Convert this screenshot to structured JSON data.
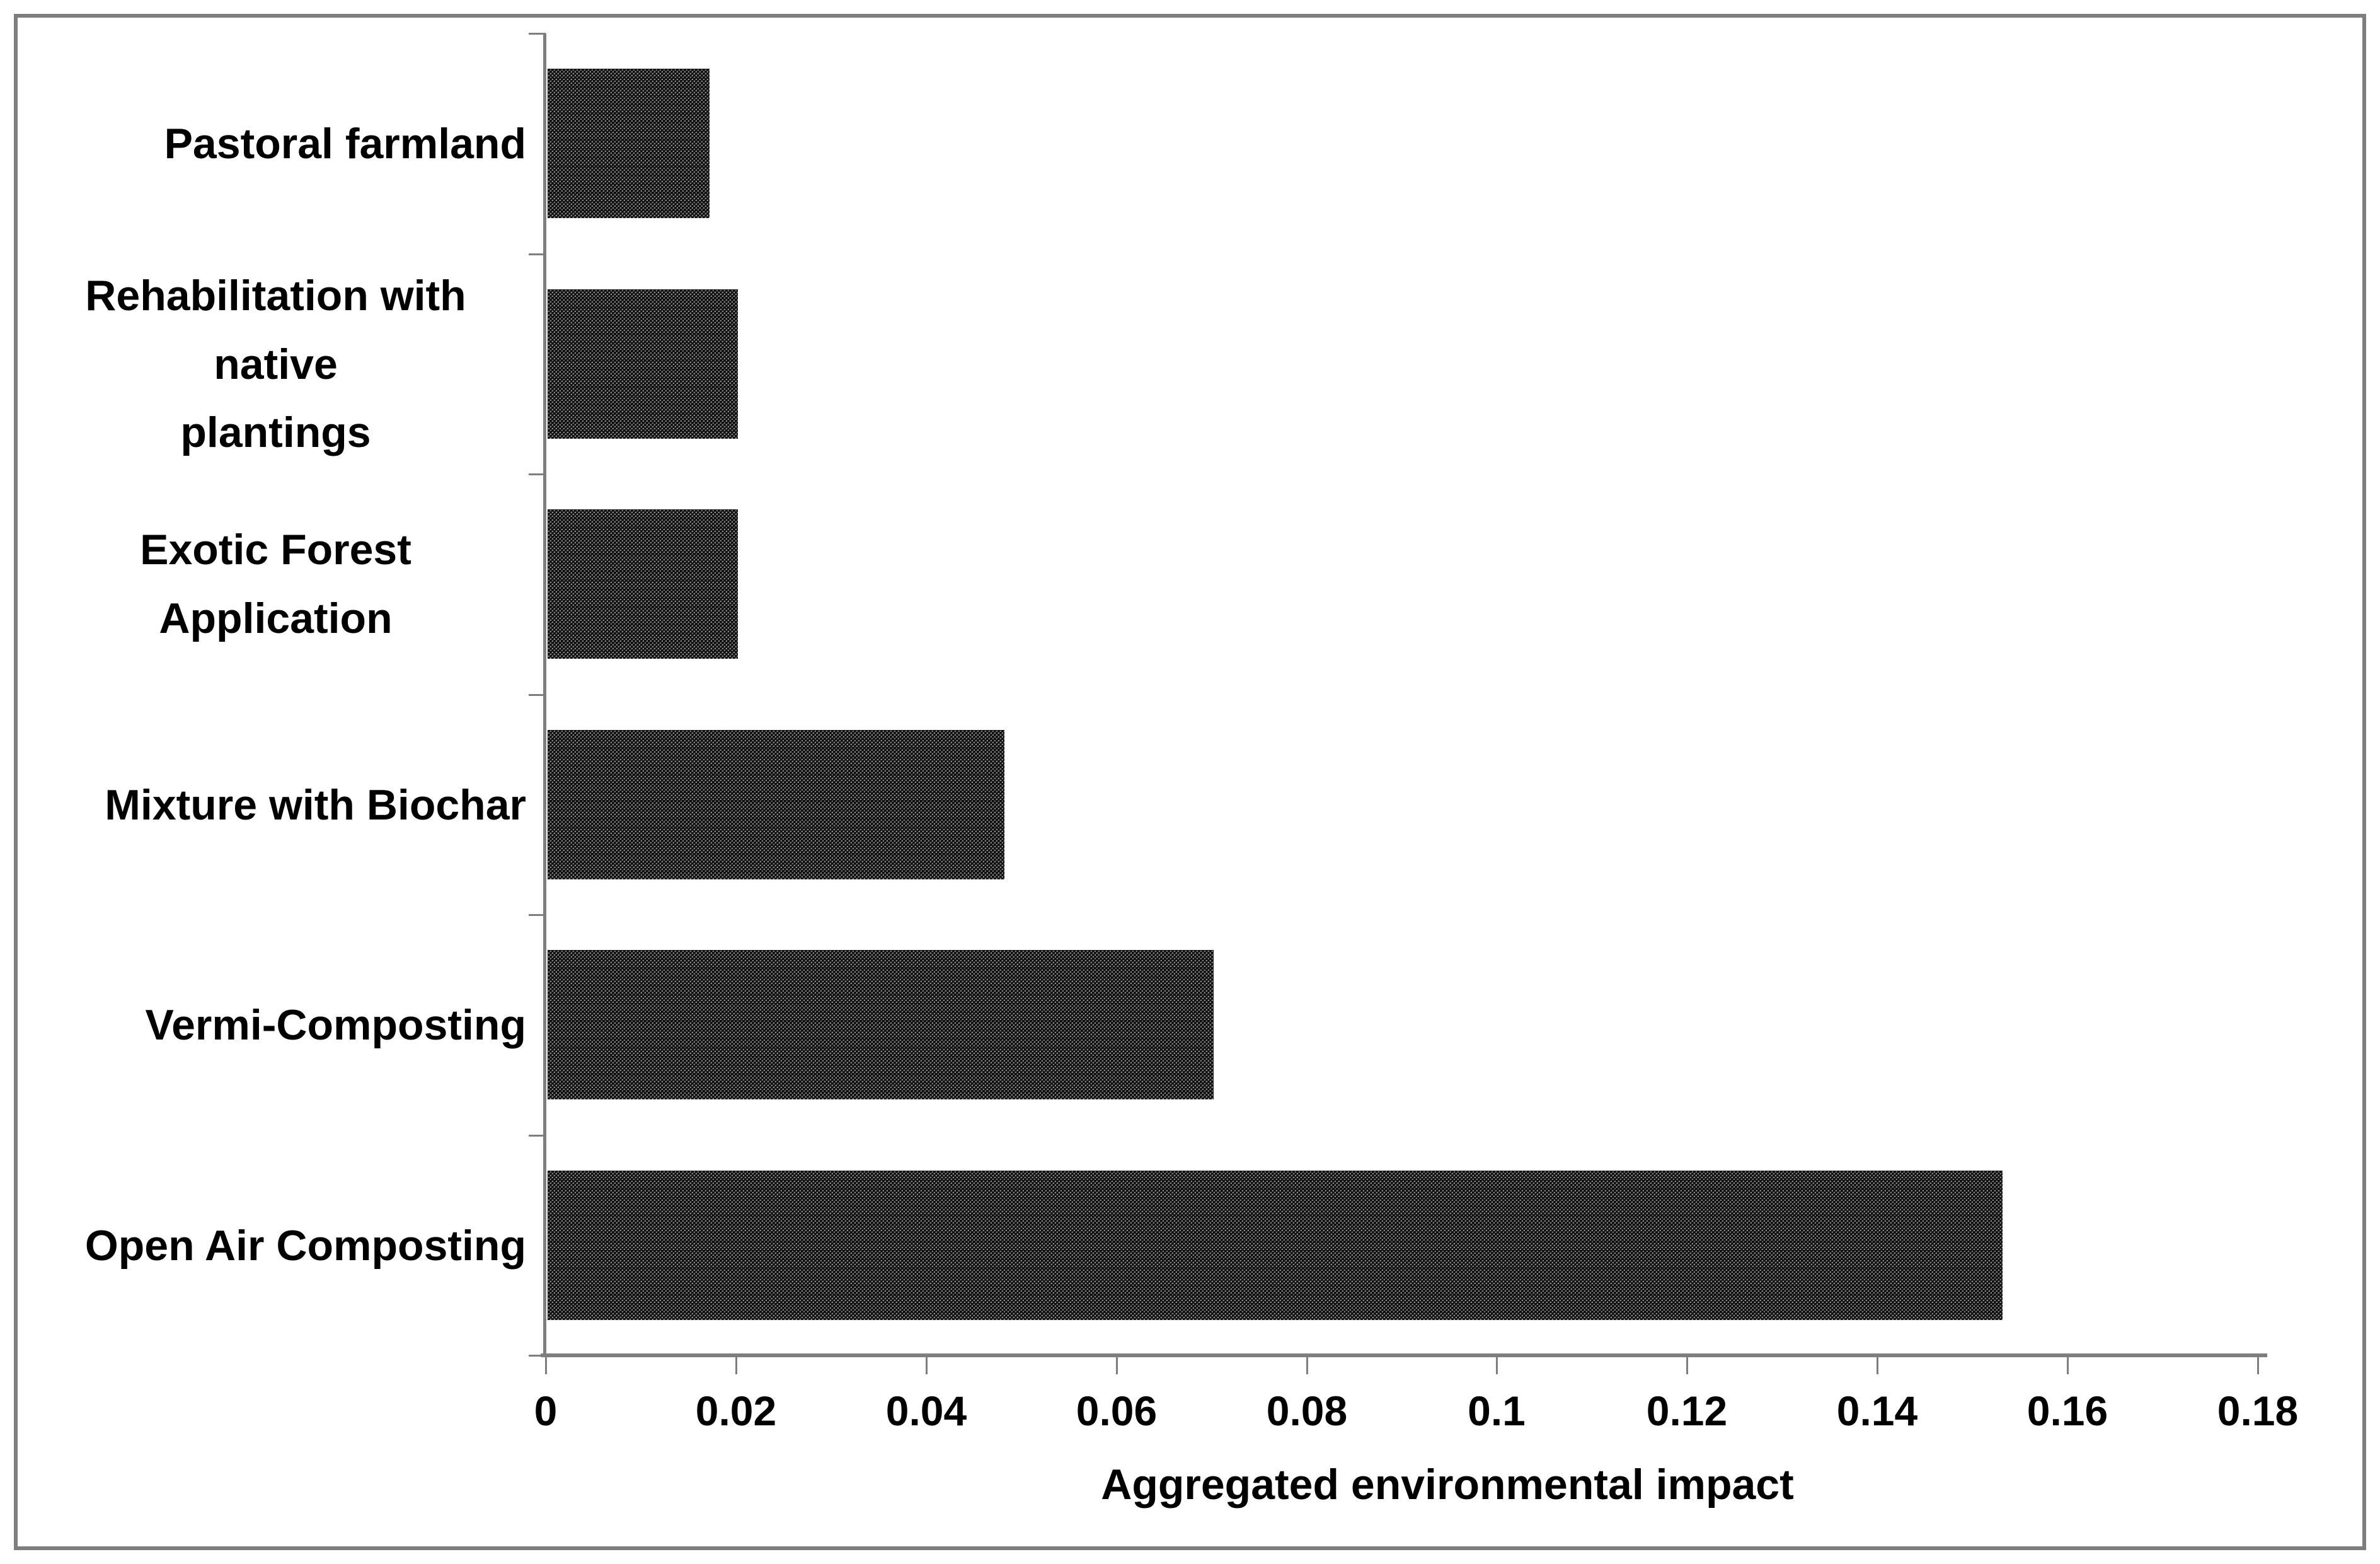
{
  "chart_data": {
    "type": "bar",
    "orientation": "horizontal",
    "title": "",
    "xlabel": "Aggregated environmental impact",
    "ylabel": "",
    "categories": [
      "Pastoral farmland",
      "Rehabilitation with native\nplantings",
      "Exotic Forest Application",
      "Mixture with Biochar",
      "Vermi-Composting",
      "Open Air Composting"
    ],
    "values": [
      0.017,
      0.02,
      0.02,
      0.048,
      0.07,
      0.153
    ],
    "xlim": [
      0,
      0.18
    ],
    "xticks": [
      0,
      0.02,
      0.04,
      0.06,
      0.08,
      0.1,
      0.12,
      0.14,
      0.16,
      0.18
    ],
    "xtick_labels": [
      "0",
      "0.02",
      "0.04",
      "0.06",
      "0.08",
      "0.1",
      "0.12",
      "0.14",
      "0.16",
      "0.18"
    ],
    "grid": false,
    "legend": null,
    "bar_color": "#4f4f4f",
    "axis_color": "#7e7e7e",
    "text_color": "#000000"
  }
}
